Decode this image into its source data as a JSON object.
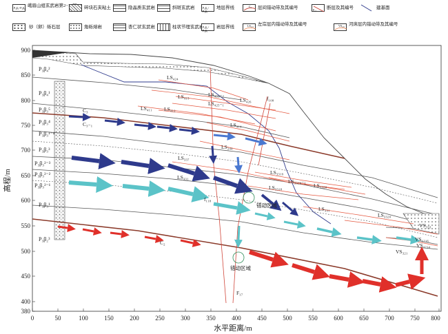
{
  "legend": {
    "items": [
      {
        "label": "峨眉山组玄武岩第2~11层",
        "swatch_text": "P₃β₂~P₃β₁₁"
      },
      {
        "label": "碎块石夹粘土"
      },
      {
        "label": "隐晶质玄武岩"
      },
      {
        "label": "斜斑玄武岩"
      },
      {
        "label": "地层界线",
        "swatch_text": "P₃β₄ / P₃β₃"
      },
      {
        "label": "层间错动带及其编号",
        "swatch_text": "C₂"
      },
      {
        "label": "断层及其编号",
        "swatch_text": "F₁₇"
      },
      {
        "label": "建基面"
      },
      {
        "label": "砂（卵）砾石层"
      },
      {
        "label": "角砾熔岩"
      },
      {
        "label": "杏仁状玄武岩"
      },
      {
        "label": "柱状节理玄武岩"
      },
      {
        "label": "岩层界线",
        "swatch_text": "P₃β₄ / P₃β₃"
      },
      {
        "label": "左岸层内错动带及其编号",
        "swatch_text": "LS₃₃₁"
      },
      {
        "label": "河床层内错动带及其编号",
        "swatch_text": "VS₃₂₁"
      }
    ]
  },
  "axes": {
    "ylabel": "高程/m",
    "xlabel": "水平距离/m",
    "yticks": [
      "380",
      "400",
      "450",
      "500",
      "550",
      "600",
      "650",
      "700",
      "750",
      "800",
      "850",
      "900"
    ],
    "xticks": [
      "0",
      "50",
      "100",
      "150",
      "200",
      "250",
      "300",
      "350",
      "400",
      "450",
      "500",
      "550",
      "600",
      "650",
      "700",
      "750",
      "800"
    ]
  },
  "strata": {
    "p3b4_2": "P₃β₄²",
    "p3b4_1": "P₃β₄¹",
    "p3b3_5": "P₃β₃⁵",
    "p3b3_4": "P₃β₃⁴",
    "p3b3_1_4": "P₃β₃¹⁻⁴",
    "p3b3_3": "P₃β₃³",
    "p3b3_2_3": "P₃β₃²⁻³",
    "p3b3_2_2": "P₃β₃²⁻²",
    "p3b3_2_1": "P₃β₃²⁻¹",
    "p3b3_1": "P₃β₃¹",
    "p3b2_3": "P₃β₂³"
  },
  "zones": {
    "c3": "C₃",
    "c3_1": "C₃₋₁",
    "c2": "C₂",
    "ls424": "LS₄₂₄",
    "ls415": "LS₄₁₅",
    "ls425_2": "LS₄₂₅₋₂",
    "ls425_1": "LS₄₂₅₋₁",
    "ls426": "LS₄₂₆",
    "ls411": "LS₄₁₁",
    "ls412": "LS₄₁₂",
    "ls414": "LS₄₁₄",
    "ls244": "LS₂₄₄",
    "ls337": "LS₃₃₇",
    "ls331_a": "LS₃₃₁",
    "ls3319": "LS₃₃₁₉",
    "ls3320_1": "LS₃₃₂₀₋₁",
    "ls3320_a": "LS₃₃₂₀",
    "ls3318": "LS₃₃₁₈",
    "ls331_b": "LS₃₃₁",
    "ls3320_b": "LS₃₃₂₀",
    "vs333": "VS₃₃₃",
    "vs1216": "VS₁₂₁₆",
    "vs3214": "VS₃₂₁₄",
    "vs321": "VS₃₂₁"
  },
  "faults": {
    "f108": "f₁₀₈",
    "f118": "f₁₁₈",
    "F17": "F₁₇"
  },
  "annotations": {
    "zone1": "错动区域",
    "zone2": "错动区域"
  },
  "colors": {
    "dark_blue": "#2e3a8c",
    "light_blue": "#5f8fe0",
    "cyan": "#5bc3c8",
    "red": "#e0302a",
    "strata_brown": "#8b3a2a",
    "fault_red": "#d0463a"
  }
}
